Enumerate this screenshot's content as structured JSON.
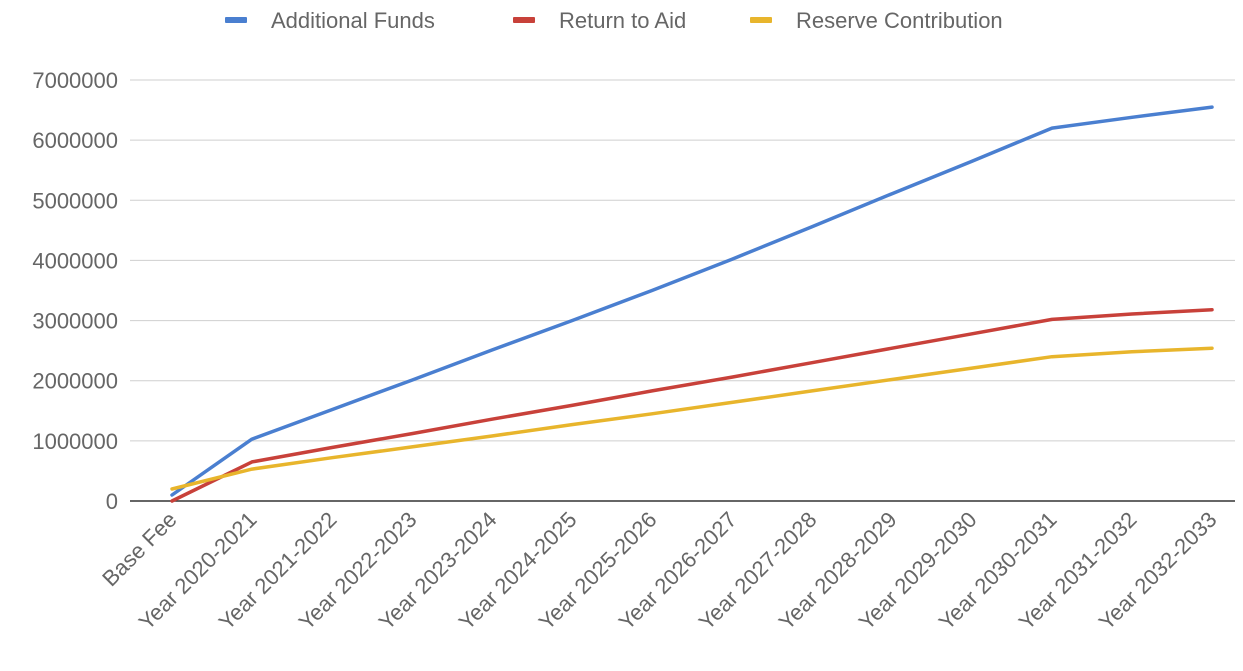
{
  "chart_data": {
    "type": "line",
    "title": "",
    "xlabel": "",
    "ylabel": "",
    "categories": [
      "Base Fee",
      "Year 2020-2021",
      "Year 2021-2022",
      "Year 2022-2023",
      "Year 2023-2024",
      "Year 2024-2025",
      "Year 2025-2026",
      "Year 2026-2027",
      "Year 2027-2028",
      "Year 2028-2029",
      "Year 2029-2030",
      "Year 2030-2031",
      "Year 2031-2032",
      "Year 2032-2033"
    ],
    "ylim": [
      0,
      7000000
    ],
    "yticks": [
      0,
      1000000,
      2000000,
      3000000,
      4000000,
      5000000,
      6000000,
      7000000
    ],
    "ytick_labels": [
      "0",
      "1000000",
      "2000000",
      "3000000",
      "4000000",
      "5000000",
      "6000000",
      "7000000"
    ],
    "grid": true,
    "legend_position": "top",
    "series": [
      {
        "name": "Additional Funds",
        "color": "#4a7fd0",
        "values": [
          100000,
          1030000,
          1520000,
          2010000,
          2510000,
          3000000,
          3500000,
          4020000,
          4560000,
          5110000,
          5650000,
          6200000,
          6380000,
          6550000
        ]
      },
      {
        "name": "Return to Aid",
        "color": "#c8413a",
        "values": [
          0,
          650000,
          890000,
          1120000,
          1360000,
          1590000,
          1830000,
          2060000,
          2300000,
          2540000,
          2780000,
          3020000,
          3110000,
          3180000
        ]
      },
      {
        "name": "Reserve Contribution",
        "color": "#e8b52c",
        "values": [
          200000,
          530000,
          720000,
          900000,
          1080000,
          1270000,
          1450000,
          1640000,
          1830000,
          2020000,
          2210000,
          2400000,
          2480000,
          2540000
        ]
      }
    ]
  }
}
